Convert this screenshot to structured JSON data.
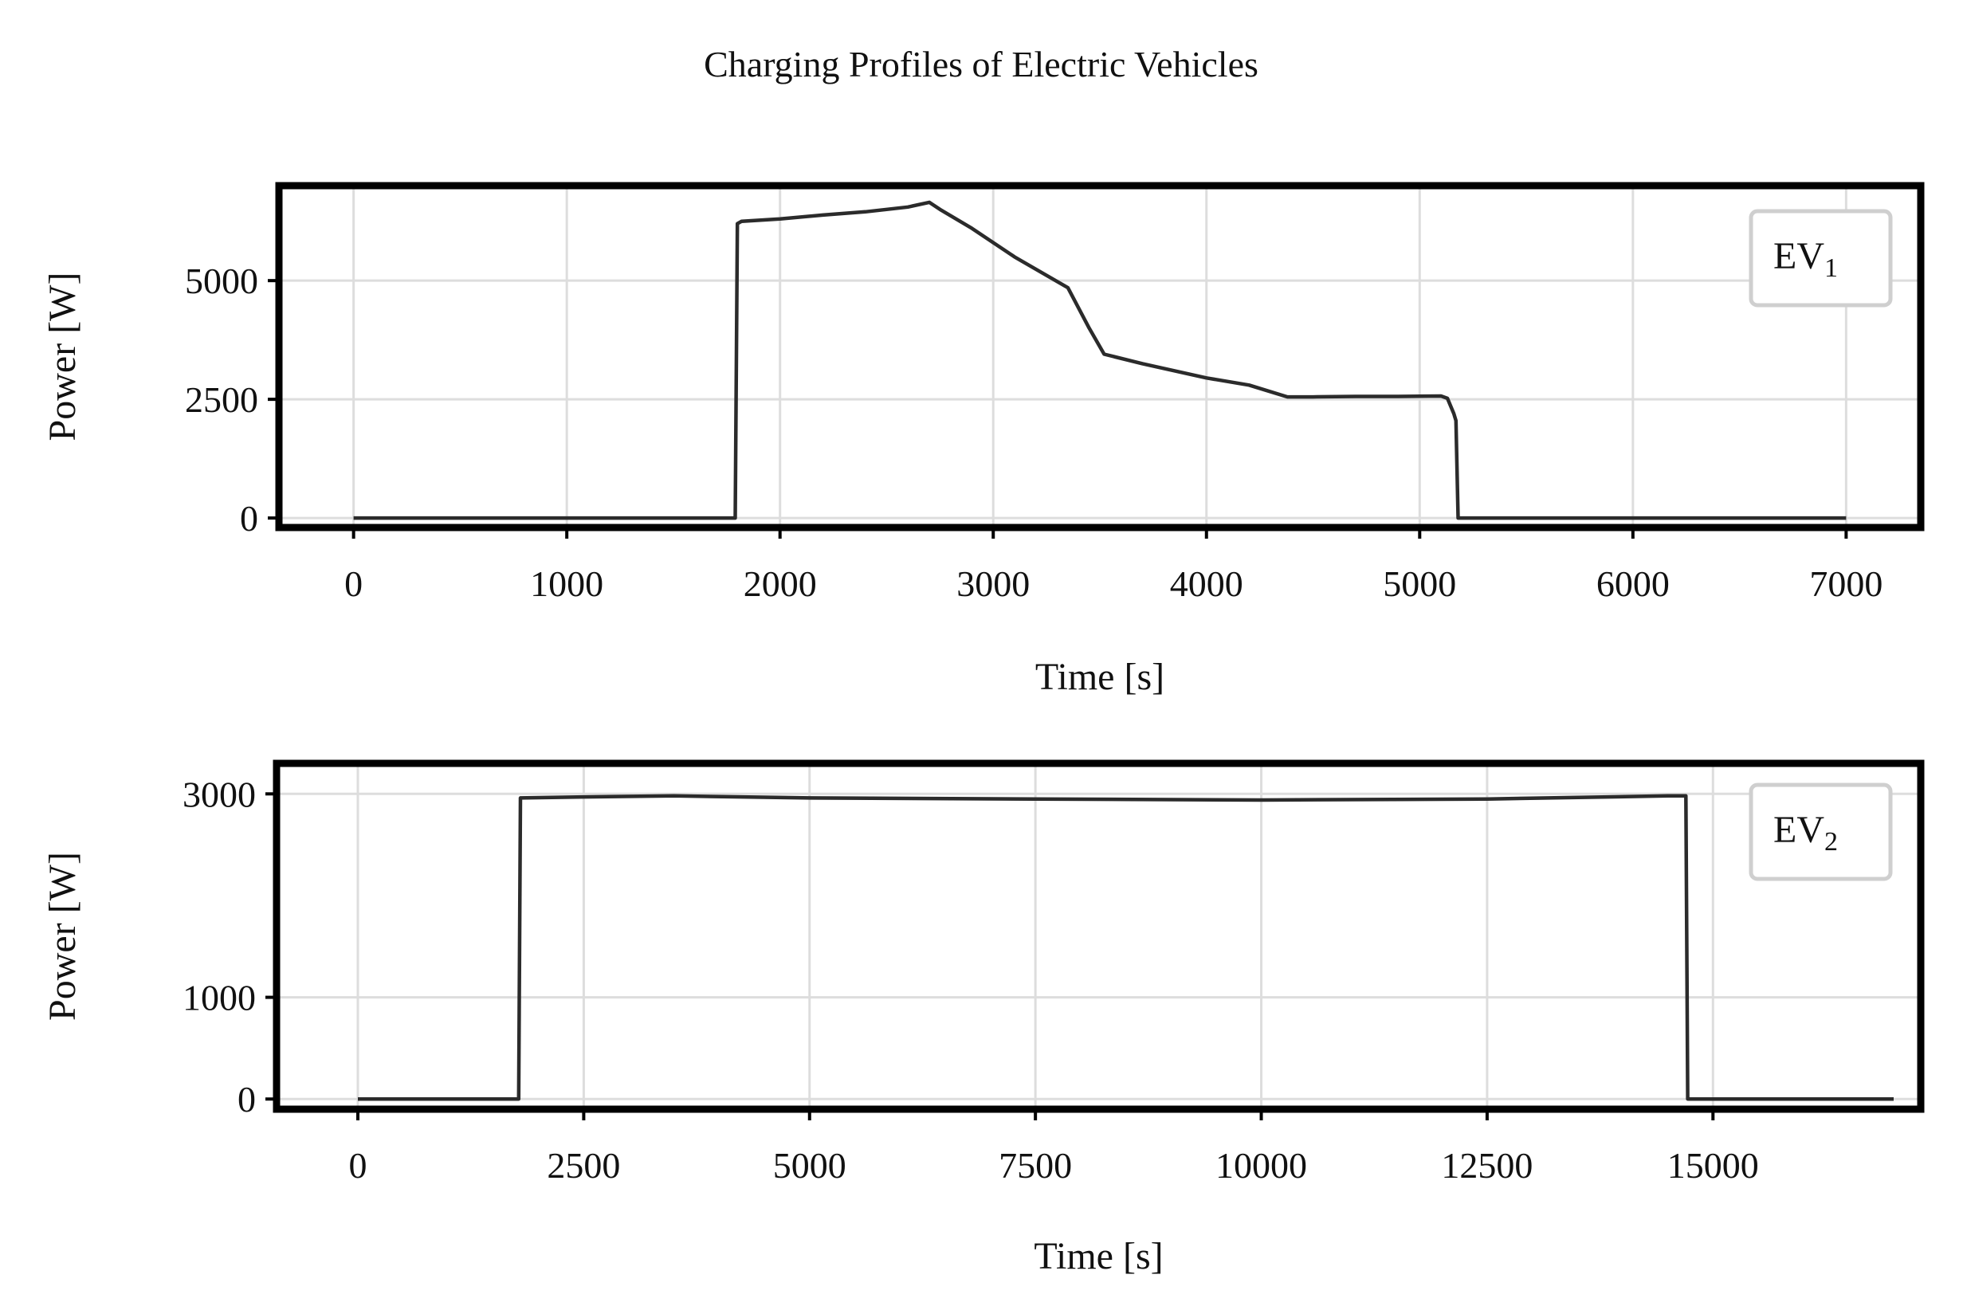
{
  "figure": {
    "title": "Charging Profiles of Electric Vehicles"
  },
  "chart_data": [
    {
      "type": "line",
      "xlabel": "Time [s]",
      "ylabel": "Power [W]",
      "xlim": [
        -350,
        7350
      ],
      "ylim": [
        -200,
        7000
      ],
      "xticks": [
        0,
        1000,
        2000,
        3000,
        4000,
        5000,
        6000,
        7000
      ],
      "xtick_labels": [
        "0",
        "1000",
        "2000",
        "3000",
        "4000",
        "5000",
        "6000",
        "7000"
      ],
      "yticks": [
        0,
        2500,
        5000
      ],
      "ytick_labels": [
        "0",
        "2500",
        "5000"
      ],
      "grid": true,
      "legend_position": "top-right",
      "color": "#2b2b2b",
      "series": [
        {
          "name": "EV",
          "subscript": "1",
          "x": [
            0,
            1790,
            1800,
            1820,
            2000,
            2200,
            2400,
            2600,
            2700,
            2750,
            2900,
            3100,
            3350,
            3450,
            3520,
            3700,
            4000,
            4200,
            4380,
            4500,
            4700,
            4900,
            5100,
            5130,
            5160,
            5170,
            5180,
            7000
          ],
          "y": [
            0,
            0,
            6200,
            6250,
            6300,
            6380,
            6450,
            6550,
            6650,
            6500,
            6100,
            5500,
            4850,
            4000,
            3450,
            3250,
            2950,
            2800,
            2550,
            2550,
            2560,
            2560,
            2570,
            2520,
            2200,
            2050,
            0,
            0
          ]
        }
      ]
    },
    {
      "type": "line",
      "xlabel": "Time [s]",
      "ylabel": "Power [W]",
      "xlim": [
        -900,
        17300
      ],
      "ylim": [
        -100,
        3300
      ],
      "xticks": [
        0,
        2500,
        5000,
        7500,
        10000,
        12500,
        15000
      ],
      "xtick_labels": [
        "0",
        "2500",
        "5000",
        "7500",
        "10000",
        "12500",
        "15000"
      ],
      "yticks": [
        0,
        1000,
        3000
      ],
      "ytick_labels": [
        "0",
        "1000",
        "3000"
      ],
      "grid": true,
      "legend_position": "top-right",
      "color": "#2b2b2b",
      "series": [
        {
          "name": "EV",
          "subscript": "2",
          "x": [
            0,
            1780,
            1800,
            2500,
            3500,
            5000,
            7500,
            10000,
            12500,
            14500,
            14700,
            14720,
            17000
          ],
          "y": [
            0,
            0,
            2960,
            2970,
            2980,
            2960,
            2950,
            2940,
            2950,
            2980,
            2980,
            0,
            0
          ]
        }
      ]
    }
  ]
}
